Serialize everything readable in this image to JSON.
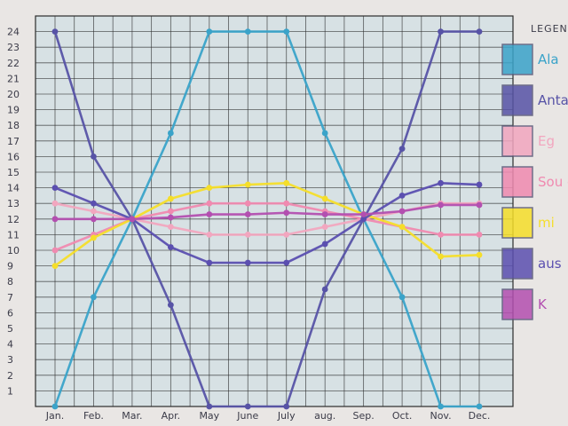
{
  "chart_data": {
    "type": "line",
    "title": "",
    "xlabel": "",
    "ylabel": "",
    "categories": [
      "Jan.",
      "Feb.",
      "Mar.",
      "Apr.",
      "May",
      "June",
      "July",
      "aug.",
      "Sep.",
      "Oct.",
      "Nov.",
      "Dec."
    ],
    "y_ticks": [
      24,
      23,
      22,
      21,
      20,
      19,
      18,
      17,
      16,
      15,
      14,
      13,
      12,
      11,
      10,
      9,
      8,
      7,
      6,
      5,
      4,
      3,
      2,
      1
    ],
    "ylim": [
      0,
      25
    ],
    "grid": true,
    "legend_title": "LEGEND",
    "legend_position": "right",
    "series": [
      {
        "name": "Ala",
        "color": "#3aa3c9",
        "values": [
          0,
          7,
          12,
          17.5,
          24,
          24,
          24,
          17.5,
          12,
          7,
          0,
          0
        ]
      },
      {
        "name": "Anta",
        "color": "#5753a6",
        "values": [
          24,
          16,
          12,
          6.5,
          0,
          0,
          0,
          7.5,
          12,
          16.5,
          24,
          24
        ]
      },
      {
        "name": "Eg",
        "color": "#f2a6bf",
        "values": [
          13,
          12.5,
          12,
          11.5,
          11,
          11,
          11,
          11.5,
          12,
          12.5,
          13,
          13
        ]
      },
      {
        "name": "Sou of",
        "color": "#f08ab0",
        "values": [
          10,
          11,
          12,
          12.5,
          13,
          13,
          13,
          12.5,
          12,
          11.5,
          11,
          11
        ]
      },
      {
        "name": "mi",
        "color": "#f5de2a",
        "values": [
          9,
          10.8,
          12,
          13.3,
          14,
          14.2,
          14.3,
          13.3,
          12.3,
          11.5,
          9.6,
          9.7
        ]
      },
      {
        "name": "aus",
        "color": "#5b4fb0",
        "values": [
          14,
          13,
          12,
          10.2,
          9.2,
          9.2,
          9.2,
          10.4,
          12,
          13.5,
          14.3,
          14.2
        ]
      },
      {
        "name": "K",
        "color": "#b34fb0",
        "values": [
          12,
          12,
          12,
          12.1,
          12.3,
          12.3,
          12.4,
          12.3,
          12.3,
          12.5,
          12.9,
          12.9
        ]
      }
    ]
  }
}
